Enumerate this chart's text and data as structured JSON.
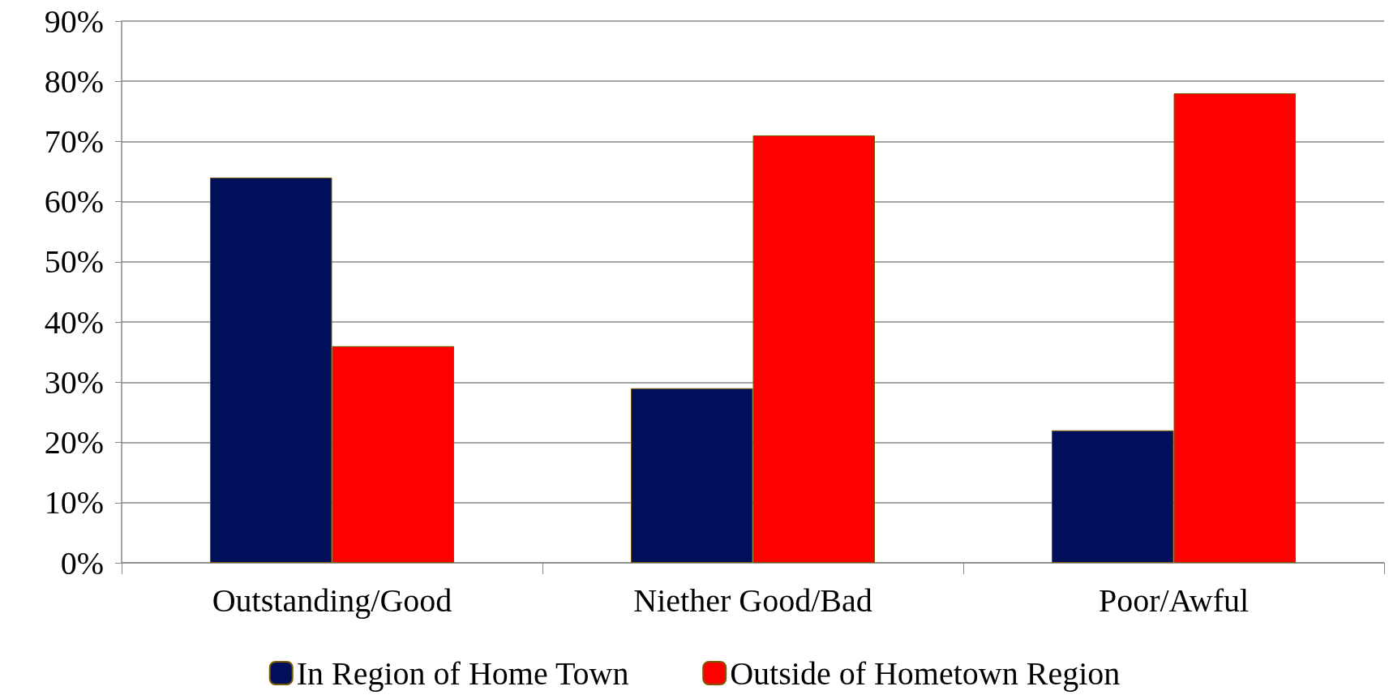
{
  "chart_data": {
    "type": "bar",
    "categories": [
      "Outstanding/Good",
      "Niether Good/Bad",
      "Poor/Awful"
    ],
    "series": [
      {
        "name": "In Region of Home Town",
        "color": "#000f5a",
        "values": [
          64,
          29,
          22
        ]
      },
      {
        "name": "Outside of Hometown Region",
        "color": "#ff0000",
        "values": [
          36,
          71,
          78
        ]
      }
    ],
    "ylim": [
      0,
      90
    ],
    "yticks": [
      {
        "value": 0,
        "label": "0%"
      },
      {
        "value": 10,
        "label": "10%"
      },
      {
        "value": 20,
        "label": "20%"
      },
      {
        "value": 30,
        "label": "30%"
      },
      {
        "value": 40,
        "label": "40%"
      },
      {
        "value": 50,
        "label": "50%"
      },
      {
        "value": 60,
        "label": "60%"
      },
      {
        "value": 70,
        "label": "70%"
      },
      {
        "value": 80,
        "label": "80%"
      },
      {
        "value": 90,
        "label": "90%"
      }
    ],
    "grid": "y",
    "legend": "bottom"
  }
}
